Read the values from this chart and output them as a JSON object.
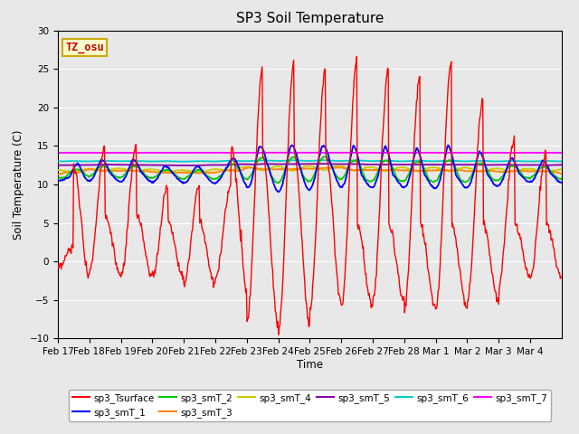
{
  "title": "SP3 Soil Temperature",
  "ylabel": "Soil Temperature (C)",
  "xlabel": "Time",
  "ylim": [
    -10,
    30
  ],
  "yticks": [
    -10,
    -5,
    0,
    5,
    10,
    15,
    20,
    25,
    30
  ],
  "xtick_labels": [
    "Feb 17",
    "Feb 18",
    "Feb 19",
    "Feb 20",
    "Feb 21",
    "Feb 22",
    "Feb 23",
    "Feb 24",
    "Feb 25",
    "Feb 26",
    "Feb 27",
    "Feb 28",
    "Mar 1",
    "Mar 2",
    "Mar 3",
    "Mar 4"
  ],
  "annotation_text": "TZ_osu",
  "annotation_color": "#cc0000",
  "annotation_bg": "#ffffcc",
  "annotation_border": "#ccaa00",
  "series_colors": {
    "sp3_Tsurface": "#ff0000",
    "sp3_smT_1": "#0000ff",
    "sp3_smT_2": "#00cc00",
    "sp3_smT_3": "#ff8800",
    "sp3_smT_4": "#cccc00",
    "sp3_smT_5": "#8800aa",
    "sp3_smT_6": "#00cccc",
    "sp3_smT_7": "#ff00ff"
  },
  "bg_color": "#e8e8e8",
  "grid_color": "#ffffff",
  "fig_bg": "#e8e8e8"
}
